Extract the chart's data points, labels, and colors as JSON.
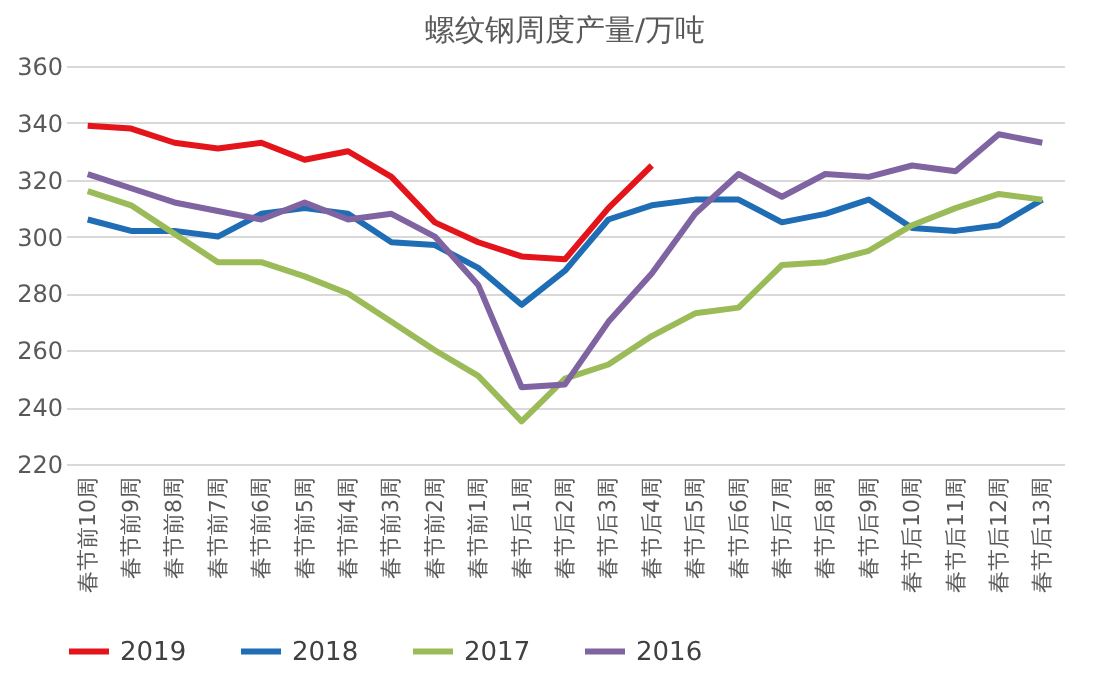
{
  "chart_data": {
    "type": "line",
    "title": "螺纹钢周度产量/万吨",
    "categories": [
      "春节前10周",
      "春节前9周",
      "春节前8周",
      "春节前7周",
      "春节前6周",
      "春节前5周",
      "春节前4周",
      "春节前3周",
      "春节前2周",
      "春节前1周",
      "春节后1周",
      "春节后2周",
      "春节后3周",
      "春节后4周",
      "春节后5周",
      "春节后6周",
      "春节后7周",
      "春节后8周",
      "春节后9周",
      "春节后10周",
      "春节后11周",
      "春节后12周",
      "春节后13周"
    ],
    "series": [
      {
        "name": "2019",
        "color": "#e3151b",
        "values": [
          339,
          338,
          333,
          331,
          333,
          327,
          330,
          321,
          305,
          298,
          293,
          292,
          310,
          325,
          null,
          null,
          null,
          null,
          null,
          null,
          null,
          null,
          null
        ]
      },
      {
        "name": "2018",
        "color": "#1f6db4",
        "values": [
          306,
          302,
          302,
          300,
          308,
          310,
          308,
          298,
          297,
          289,
          276,
          288,
          306,
          311,
          313,
          313,
          305,
          308,
          313,
          303,
          302,
          304,
          313
        ]
      },
      {
        "name": "2017",
        "color": "#9bbb59",
        "values": [
          316,
          311,
          301,
          291,
          291,
          286,
          280,
          270,
          260,
          251,
          235,
          250,
          255,
          265,
          273,
          275,
          290,
          291,
          295,
          304,
          310,
          315,
          313
        ]
      },
      {
        "name": "2016",
        "color": "#8064a2",
        "values": [
          322,
          317,
          312,
          309,
          306,
          312,
          306,
          308,
          300,
          283,
          247,
          248,
          270,
          287,
          308,
          322,
          314,
          322,
          321,
          325,
          323,
          336,
          333
        ]
      }
    ],
    "ylim": [
      220,
      360
    ],
    "yticks": [
      220,
      240,
      260,
      280,
      300,
      320,
      340,
      360
    ],
    "grid": "y",
    "legend": "bottom",
    "marker": "none",
    "line_style": "solid"
  }
}
